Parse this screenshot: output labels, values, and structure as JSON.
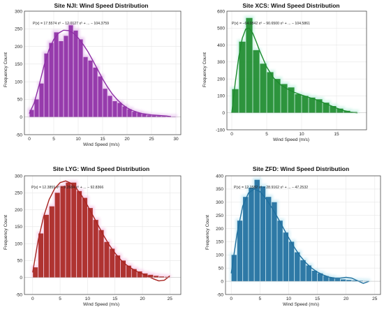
{
  "charts": [
    {
      "title": "Site NJI: Wind Speed Distribution",
      "xlabel": "Wind Speed (m/s)",
      "ylabel": "Frequency Count",
      "equation": "P(x) = 17.5574 x⁶ − 12.0127 x⁵ + ... − 104.3759",
      "color": "#8e2fa6",
      "fill": "#e7c5ee"
    },
    {
      "title": "Site XCS: Wind Speed Distribution",
      "xlabel": "Wind Speed (m/s)",
      "ylabel": "Frequency Count",
      "equation": "P(x) = −64.0842 x⁶ − 90.6500 x⁵ + ... − 104.5861",
      "color": "#1e8c2e",
      "fill": "#c8f2e4"
    },
    {
      "title": "Site LYG: Wind Speed Distribution",
      "xlabel": "Wind Speed (m/s)",
      "ylabel": "Frequency Count",
      "equation": "P(x) = 12.3859 x⁶ − 9.2684 x⁵ + ... − 92.8366",
      "color": "#a82521",
      "fill": "#f6cfe9"
    },
    {
      "title": "Site ZFD: Wind Speed Distribution",
      "xlabel": "Wind Speed (m/s)",
      "ylabel": "Frequency Count",
      "equation": "P(x) = 12.1582 x⁶ − 28.9162 x⁵ + ... − 47.2532",
      "color": "#1f6f9e",
      "fill": "#c9eaf4"
    }
  ],
  "chart_data": [
    {
      "type": "bar",
      "title": "Site NJI: Wind Speed Distribution",
      "xlabel": "Wind Speed (m/s)",
      "ylabel": "Frequency Count",
      "xlim": [
        -1,
        31
      ],
      "ylim": [
        -50,
        300
      ],
      "xticks": [
        0,
        5,
        10,
        15,
        20,
        25,
        30
      ],
      "yticks": [
        -50,
        0,
        50,
        100,
        150,
        200,
        250,
        300
      ],
      "bin_width": 1,
      "bin_centers": [
        0.5,
        1.5,
        2.5,
        3.5,
        4.5,
        5.5,
        6.5,
        7.5,
        8.5,
        9.5,
        10.5,
        11.5,
        12.5,
        13.5,
        14.5,
        15.5,
        16.5,
        17.5,
        18.5,
        19.5,
        20.5,
        21.5,
        22.5,
        23.5,
        24.5,
        25.5,
        26.5,
        27.5,
        28.5,
        29.5
      ],
      "values": [
        20,
        50,
        95,
        180,
        210,
        240,
        215,
        230,
        260,
        245,
        220,
        170,
        160,
        140,
        115,
        80,
        60,
        45,
        40,
        30,
        22,
        15,
        12,
        8,
        5,
        4,
        3,
        2,
        1,
        1
      ],
      "fit_x": [
        0,
        1,
        2,
        3,
        4,
        5,
        6,
        7,
        8,
        9,
        10,
        11,
        12,
        13,
        14,
        15,
        16,
        17,
        18,
        19,
        20,
        21,
        22,
        23,
        24,
        25,
        26,
        27,
        28,
        29
      ],
      "fit_y": [
        10,
        40,
        90,
        145,
        190,
        220,
        238,
        246,
        245,
        238,
        224,
        206,
        185,
        160,
        134,
        108,
        85,
        65,
        49,
        36,
        26,
        19,
        14,
        10,
        8,
        6,
        5,
        4,
        3,
        1
      ]
    },
    {
      "type": "bar",
      "title": "Site XCS: Wind Speed Distribution",
      "xlabel": "Wind Speed (m/s)",
      "ylabel": "Frequency Count",
      "xlim": [
        -0.7,
        19.3
      ],
      "ylim": [
        -100,
        600
      ],
      "xticks": [
        0,
        5,
        10,
        15
      ],
      "yticks": [
        -100,
        0,
        100,
        200,
        300,
        400,
        500,
        600
      ],
      "bin_width": 1,
      "bin_centers": [
        0.5,
        1.5,
        2.5,
        3.5,
        4.5,
        5.5,
        6.5,
        7.5,
        8.5,
        9.5,
        10.5,
        11.5,
        12.5,
        13.5,
        14.5,
        15.5,
        16.5,
        17.5
      ],
      "values": [
        140,
        420,
        560,
        370,
        290,
        240,
        200,
        170,
        150,
        110,
        100,
        90,
        80,
        60,
        40,
        25,
        12,
        5
      ],
      "fit_x": [
        0,
        0.5,
        1,
        1.5,
        2,
        2.5,
        3,
        3.5,
        4,
        5,
        6,
        7,
        8,
        9,
        10,
        11,
        12,
        13,
        14,
        15,
        16,
        17,
        18
      ],
      "fit_y": [
        0,
        180,
        330,
        440,
        495,
        500,
        470,
        420,
        365,
        270,
        205,
        165,
        140,
        120,
        105,
        92,
        78,
        62,
        45,
        28,
        14,
        4,
        0
      ]
    },
    {
      "type": "bar",
      "title": "Site LYG: Wind Speed Distribution",
      "xlabel": "Wind Speed (m/s)",
      "ylabel": "Frequency Count",
      "xlim": [
        -1.5,
        27
      ],
      "ylim": [
        -50,
        300
      ],
      "xticks": [
        0,
        5,
        10,
        15,
        20,
        25
      ],
      "yticks": [
        -50,
        0,
        50,
        100,
        150,
        200,
        250,
        300
      ],
      "bin_width": 1,
      "bin_centers": [
        0.5,
        1.5,
        2.5,
        3.5,
        4.5,
        5.5,
        6.5,
        7.5,
        8.5,
        9.5,
        10.5,
        11.5,
        12.5,
        13.5,
        14.5,
        15.5,
        16.5,
        17.5,
        18.5,
        19.5,
        20.5,
        21.5,
        22.5,
        23.5,
        24.5
      ],
      "values": [
        30,
        130,
        185,
        210,
        250,
        270,
        280,
        280,
        255,
        235,
        205,
        170,
        140,
        105,
        85,
        65,
        50,
        35,
        25,
        18,
        12,
        8,
        5,
        3,
        2
      ],
      "fit_x": [
        0,
        1,
        2,
        3,
        4,
        5,
        6,
        7,
        8,
        9,
        10,
        11,
        12,
        13,
        14,
        15,
        16,
        17,
        18,
        19,
        20,
        21,
        22,
        23,
        24,
        25
      ],
      "fit_y": [
        15,
        110,
        180,
        230,
        262,
        280,
        285,
        278,
        262,
        240,
        212,
        182,
        152,
        122,
        95,
        72,
        53,
        38,
        27,
        18,
        11,
        4,
        -4,
        -10,
        -8,
        5
      ]
    },
    {
      "type": "bar",
      "title": "Site ZFD: Wind Speed Distribution",
      "xlabel": "Wind Speed (m/s)",
      "ylabel": "Frequency Count",
      "xlim": [
        -1,
        26
      ],
      "ylim": [
        -50,
        400
      ],
      "xticks": [
        0,
        5,
        10,
        15,
        20,
        25
      ],
      "yticks": [
        -50,
        0,
        50,
        100,
        150,
        200,
        250,
        300,
        350,
        400
      ],
      "bin_width": 1,
      "bin_centers": [
        0.5,
        1.5,
        2.5,
        3.5,
        4.5,
        5.5,
        6.5,
        7.5,
        8.5,
        9.5,
        10.5,
        11.5,
        12.5,
        13.5,
        14.5,
        15.5,
        16.5,
        17.5,
        18.5,
        19.5,
        20.5,
        21.5,
        22.5,
        23.5
      ],
      "values": [
        100,
        230,
        320,
        355,
        385,
        360,
        320,
        300,
        230,
        185,
        150,
        110,
        80,
        60,
        40,
        30,
        20,
        15,
        10,
        7,
        5,
        3,
        2,
        1
      ],
      "fit_x": [
        0,
        1,
        2,
        3,
        4,
        5,
        6,
        7,
        8,
        9,
        10,
        11,
        12,
        13,
        14,
        15,
        16,
        17,
        18,
        19,
        20,
        21,
        22,
        23,
        24
      ],
      "fit_y": [
        30,
        180,
        285,
        335,
        350,
        340,
        315,
        282,
        245,
        205,
        165,
        128,
        96,
        70,
        50,
        35,
        24,
        16,
        12,
        12,
        15,
        12,
        2,
        -8,
        0
      ]
    }
  ]
}
